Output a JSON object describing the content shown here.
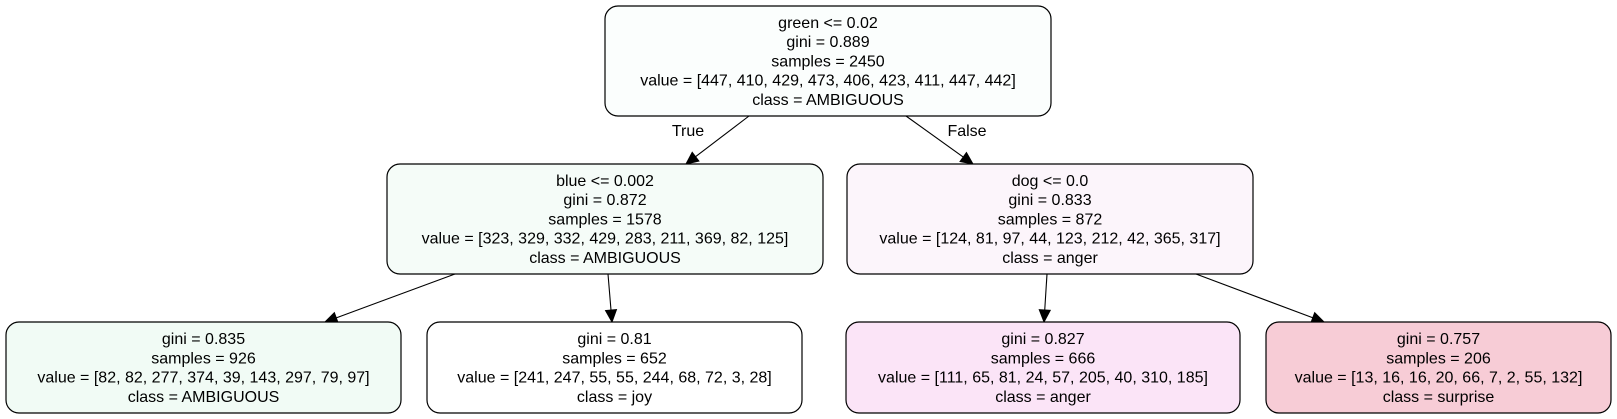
{
  "nodes": [
    {
      "id": "root",
      "fill": "#fbfefd",
      "lines": [
        "green <= 0.02",
        "gini = 0.889",
        "samples = 2450",
        "value = [447, 410, 429, 473, 406, 423, 411, 447, 442]",
        "class = AMBIGUOUS"
      ]
    },
    {
      "id": "left",
      "fill": "#f5fcf8",
      "lines": [
        "blue <= 0.002",
        "gini = 0.872",
        "samples = 1578",
        "value = [323, 329, 332, 429, 283, 211, 369, 82, 125]",
        "class = AMBIGUOUS"
      ]
    },
    {
      "id": "right",
      "fill": "#fcf5fb",
      "lines": [
        "dog <= 0.0",
        "gini = 0.833",
        "samples = 872",
        "value = [124, 81, 97, 44, 123, 212, 42, 365, 317]",
        "class = anger"
      ]
    },
    {
      "id": "left-left",
      "fill": "#f1fbf5",
      "lines": [
        "gini = 0.835",
        "samples = 926",
        "value = [82, 82, 277, 374, 39, 143, 297, 79, 97]",
        "class = AMBIGUOUS"
      ]
    },
    {
      "id": "left-right",
      "fill": "#ffffff",
      "lines": [
        "gini = 0.81",
        "samples = 652",
        "value = [241, 247, 55, 55, 244, 68, 72, 3, 28]",
        "class = joy"
      ]
    },
    {
      "id": "right-left",
      "fill": "#fbe4f7",
      "lines": [
        "gini = 0.827",
        "samples = 666",
        "value = [111, 65, 81, 24, 57, 205, 40, 310, 185]",
        "class = anger"
      ]
    },
    {
      "id": "right-right",
      "fill": "#f7ccd6",
      "lines": [
        "gini = 0.757",
        "samples = 206",
        "value = [13, 16, 16, 20, 66, 7, 2, 55, 132]",
        "class = surprise"
      ]
    }
  ],
  "edges": [
    {
      "from": "root",
      "to": "left",
      "label": "True"
    },
    {
      "from": "root",
      "to": "right",
      "label": "False"
    },
    {
      "from": "left",
      "to": "left-left",
      "label": ""
    },
    {
      "from": "left",
      "to": "left-right",
      "label": ""
    },
    {
      "from": "right",
      "to": "right-left",
      "label": ""
    },
    {
      "from": "right",
      "to": "right-right",
      "label": ""
    }
  ]
}
